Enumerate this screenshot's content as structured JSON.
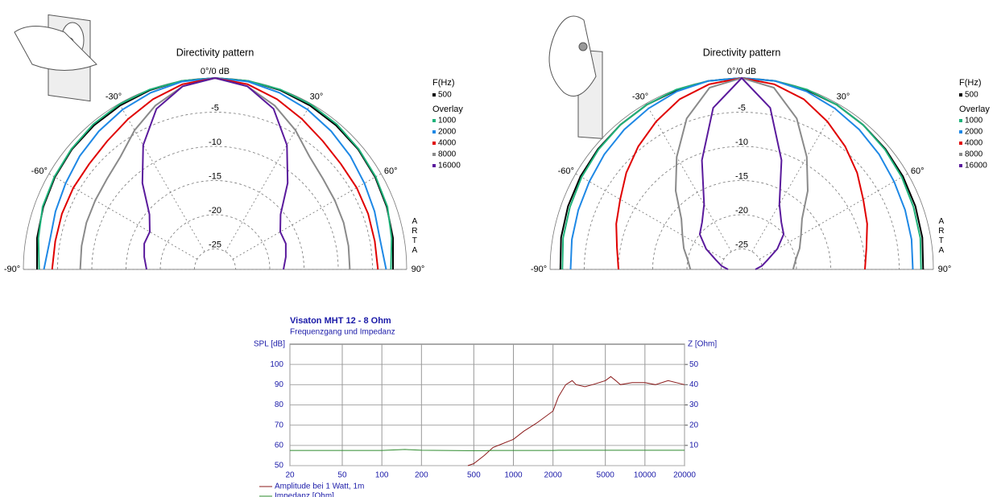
{
  "chart_data": [
    {
      "type": "polar",
      "title": "Directivity pattern",
      "legend_title": "F(Hz)",
      "overlay_label": "Overlay",
      "watermark": "ARTA",
      "rlim": [
        -28,
        0
      ],
      "rticks": [
        {
          "value": 0,
          "label": "0°/0 dB"
        },
        -5,
        -10,
        -15,
        -20,
        -25
      ],
      "thetaticks": [
        {
          "value": -90,
          "label": "-90°"
        },
        {
          "value": -60,
          "label": "-60°"
        },
        {
          "value": -30,
          "label": "-30°"
        },
        {
          "value": 30,
          "label": "30°"
        },
        {
          "value": 60,
          "label": "60°"
        },
        {
          "value": 90,
          "label": "90°"
        }
      ],
      "theta": [
        -90,
        -80,
        -70,
        -60,
        -50,
        -40,
        -30,
        -20,
        -10,
        0,
        10,
        20,
        30,
        40,
        50,
        60,
        70,
        80,
        90
      ],
      "series": [
        {
          "name": "500",
          "color": "#000000",
          "values": [
            -2,
            -1.6,
            -1.3,
            -1,
            -0.7,
            -0.5,
            -0.3,
            -0.1,
            0,
            0,
            0,
            -0.1,
            -0.3,
            -0.5,
            -0.7,
            -1,
            -1.3,
            -1.6,
            -2
          ]
        },
        {
          "name": "1000",
          "color": "#1fb27a",
          "values": [
            -2.3,
            -1.8,
            -1.2,
            -0.9,
            -0.6,
            -0.3,
            -0.1,
            0,
            0,
            0,
            0,
            0,
            -0.1,
            -0.3,
            -0.6,
            -0.9,
            -1.2,
            -1.8,
            -2.3
          ]
        },
        {
          "name": "2000",
          "color": "#1e88e5",
          "values": [
            -3,
            -3.5,
            -3.2,
            -2.8,
            -2.2,
            -1.6,
            -1,
            -0.5,
            -0.1,
            0,
            -0.1,
            -0.5,
            -1,
            -1.6,
            -2.2,
            -2.8,
            -3.2,
            -3.5,
            -3
          ]
        },
        {
          "name": "4000",
          "color": "#e00000",
          "values": [
            -4.2,
            -4.3,
            -4.2,
            -4.1,
            -4,
            -3.5,
            -2.6,
            -1.5,
            -0.5,
            0,
            -0.5,
            -1.5,
            -2.6,
            -3.5,
            -4,
            -4.1,
            -4.2,
            -4.3,
            -4.2
          ]
        },
        {
          "name": "8000",
          "color": "#8a8a8a",
          "values": [
            -8.3,
            -8.2,
            -8,
            -7.8,
            -7.4,
            -6.5,
            -4.5,
            -2.5,
            -0.8,
            0,
            -0.8,
            -2.5,
            -4.5,
            -6.5,
            -7.4,
            -7.8,
            -8,
            -8.2,
            -8.3
          ]
        },
        {
          "name": "16000",
          "color": "#5a1a9c",
          "values": [
            -18,
            -17.5,
            -17,
            -17,
            -15.5,
            -11.5,
            -7,
            -3,
            -0.8,
            0,
            -0.8,
            -3,
            -7,
            -11.5,
            -15.5,
            -17,
            -17,
            -17.5,
            -18
          ]
        }
      ]
    },
    {
      "type": "polar",
      "title": "Directivity pattern",
      "legend_title": "F(Hz)",
      "overlay_label": "Overlay",
      "watermark": "ARTA",
      "rlim": [
        -28,
        0
      ],
      "rticks": [
        {
          "value": 0,
          "label": "0°/0 dB"
        },
        -5,
        -10,
        -15,
        -20,
        -25
      ],
      "thetaticks": [
        {
          "value": -90,
          "label": "-90°"
        },
        {
          "value": -60,
          "label": "-60°"
        },
        {
          "value": -30,
          "label": "-30°"
        },
        {
          "value": 30,
          "label": "30°"
        },
        {
          "value": 60,
          "label": "60°"
        },
        {
          "value": 90,
          "label": "90°"
        }
      ],
      "theta": [
        -90,
        -80,
        -70,
        -60,
        -50,
        -40,
        -30,
        -20,
        -10,
        0,
        10,
        20,
        30,
        40,
        50,
        60,
        70,
        80,
        90
      ],
      "series": [
        {
          "name": "500",
          "color": "#000000",
          "values": [
            -1.5,
            -1.2,
            -1,
            -0.8,
            -0.6,
            -0.4,
            -0.2,
            -0.1,
            0,
            0,
            0,
            -0.1,
            -0.2,
            -0.4,
            -0.6,
            -0.8,
            -1,
            -1.2,
            -1.5
          ]
        },
        {
          "name": "1000",
          "color": "#1fb27a",
          "values": [
            -1.8,
            -1.5,
            -1.3,
            -1,
            -0.7,
            -0.4,
            -0.2,
            0,
            0,
            0,
            0,
            0,
            -0.2,
            -0.4,
            -0.7,
            -1,
            -1.3,
            -1.5,
            -1.8
          ]
        },
        {
          "name": "2000",
          "color": "#1e88e5",
          "values": [
            -3,
            -2.8,
            -2.6,
            -2.3,
            -1.8,
            -1.3,
            -0.8,
            -0.3,
            0,
            0,
            0,
            -0.3,
            -0.8,
            -1.3,
            -1.8,
            -2.3,
            -2.6,
            -2.8,
            -3
          ]
        },
        {
          "name": "4000",
          "color": "#e00000",
          "values": [
            -10,
            -9.5,
            -8.5,
            -7.5,
            -6,
            -4.5,
            -3,
            -1.5,
            -0.5,
            0,
            -0.5,
            -1.5,
            -3,
            -4.5,
            -6,
            -7.5,
            -8.5,
            -9.5,
            -10
          ]
        },
        {
          "name": "8000",
          "color": "#8a8a8a",
          "values": [
            -20.5,
            -20,
            -19,
            -18,
            -16.5,
            -13,
            -9,
            -4.5,
            -1,
            0,
            -1,
            -4.5,
            -9,
            -13,
            -16.5,
            -18,
            -19,
            -20,
            -20.5
          ]
        },
        {
          "name": "16000",
          "color": "#5a1a9c",
          "values": [
            -26,
            -25,
            -24,
            -22,
            -20,
            -19,
            -17,
            -11,
            -4,
            0,
            -4,
            -11,
            -17,
            -19,
            -20,
            -22,
            -24,
            -25,
            -26
          ]
        }
      ]
    },
    {
      "type": "line",
      "title": "Visaton MHT 12 - 8 Ohm",
      "subtitle": "Frequenzgang und Impedanz",
      "ylabel": "SPL [dB]",
      "y2label": "Z [Ohm]",
      "xscale": "log",
      "x": [
        20,
        50,
        100,
        150,
        200,
        450,
        500,
        600,
        700,
        800,
        1000,
        1200,
        1500,
        2000,
        2200,
        2500,
        2800,
        3000,
        3500,
        4000,
        5000,
        5500,
        6000,
        6500,
        8000,
        10000,
        12000,
        15000,
        20000
      ],
      "xlim": [
        20,
        20000
      ],
      "xticks": [
        20,
        50,
        100,
        200,
        500,
        1000,
        2000,
        5000,
        10000,
        20000
      ],
      "ylim": [
        50,
        110
      ],
      "yticks": [
        50,
        60,
        70,
        80,
        90,
        100
      ],
      "y2lim": [
        0,
        60
      ],
      "y2ticks": [
        10,
        20,
        30,
        40,
        50
      ],
      "series": [
        {
          "name": "Amplitude bei 1 Watt, 1m",
          "color": "#8b1a1a",
          "values": [
            null,
            null,
            null,
            null,
            null,
            50,
            51,
            55,
            59,
            60.5,
            63,
            67,
            71,
            77,
            84,
            90,
            92,
            90,
            89,
            90,
            92,
            94,
            92,
            90,
            91,
            91,
            90,
            92,
            90
          ]
        },
        {
          "name": "Impedanz [Ohm]",
          "color": "#2e8b2e",
          "axis": "y2",
          "values": [
            7.5,
            7.5,
            7.5,
            8,
            7.6,
            7.4,
            7.4,
            7.4,
            7.5,
            7.5,
            7.5,
            7.5,
            7.5,
            7.5,
            7.6,
            7.6,
            7.6,
            7.6,
            7.6,
            7.6,
            7.6,
            7.6,
            7.6,
            7.6,
            7.6,
            7.6,
            7.6,
            7.6,
            7.6
          ]
        }
      ]
    }
  ]
}
